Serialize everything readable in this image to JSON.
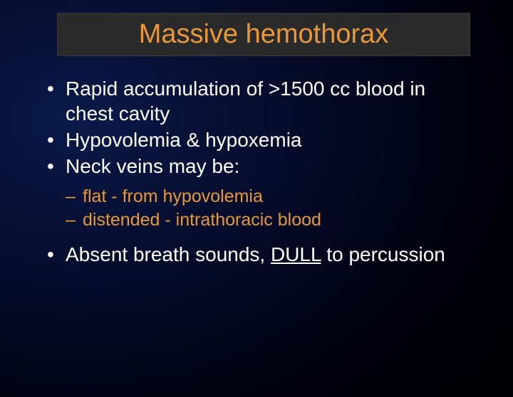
{
  "title": "Massive hemothorax",
  "bullets": {
    "b1": "Rapid accumulation of >1500 cc blood in chest cavity",
    "b2": "Hypovolemia & hypoxemia",
    "b3": "Neck veins may be:",
    "s1": "flat - from hypovolemia",
    "s2": "distended - intrathoracic blood",
    "b4_pre": "Absent breath sounds, ",
    "b4_u": "DULL",
    "b4_post": " to percussion"
  },
  "colors": {
    "title": "#e89838",
    "body": "#ffffff",
    "sub": "#e89838",
    "title_bg": "#2a2a2a"
  }
}
